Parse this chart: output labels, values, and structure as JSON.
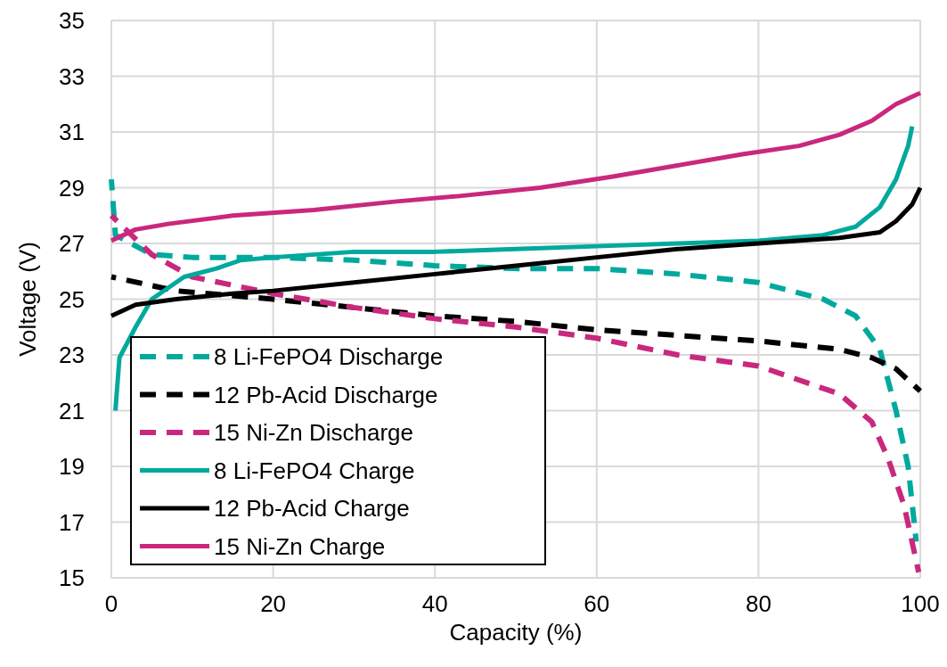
{
  "chart_data": {
    "type": "line",
    "xlabel": "Capacity (%)",
    "ylabel": "Voltage (V)",
    "xlim": [
      0,
      100
    ],
    "xticks": [
      0,
      20,
      40,
      60,
      80,
      100
    ],
    "ylim": [
      15,
      35
    ],
    "yticks": [
      15,
      17,
      19,
      21,
      23,
      25,
      27,
      29,
      31,
      33,
      35
    ],
    "grid": true,
    "legend": "bottom left",
    "series": [
      {
        "name": "8 Li-FePO4 Discharge",
        "color": "#00a99d",
        "line_style": "dashed",
        "x": [
          0,
          0.5,
          5,
          10,
          20,
          30,
          40,
          50,
          60,
          70,
          80,
          88,
          92,
          95,
          97,
          98.5,
          99.5
        ],
        "values": [
          29.3,
          27.3,
          26.6,
          26.5,
          26.5,
          26.4,
          26.2,
          26.1,
          26.1,
          25.9,
          25.6,
          25.0,
          24.4,
          23.2,
          21,
          19,
          16.3
        ]
      },
      {
        "name": "12 Pb-Acid Discharge",
        "color": "#000000",
        "line_style": "dashed",
        "x": [
          0,
          8,
          20,
          30,
          40,
          50,
          60,
          70,
          80,
          90,
          94,
          97,
          100
        ],
        "values": [
          25.8,
          25.3,
          25.0,
          24.7,
          24.4,
          24.2,
          23.9,
          23.7,
          23.5,
          23.2,
          22.9,
          22.5,
          21.7
        ]
      },
      {
        "name": "15 Ni-Zn Discharge",
        "color": "#c9287e",
        "line_style": "dashed",
        "x": [
          0,
          5,
          10,
          20,
          30,
          40,
          50,
          60,
          70,
          80,
          90,
          94,
          96,
          98,
          99.8
        ],
        "values": [
          28.0,
          26.6,
          25.8,
          25.2,
          24.7,
          24.3,
          24.0,
          23.6,
          23.0,
          22.6,
          21.6,
          20.6,
          19.3,
          17.6,
          15.2
        ]
      },
      {
        "name": "8 Li-FePO4 Charge",
        "color": "#00a99d",
        "line_style": "solid",
        "x": [
          0.5,
          1,
          3,
          5,
          9,
          13,
          16,
          20,
          30,
          40,
          50,
          60,
          70,
          80,
          88,
          92,
          95,
          97,
          98.5,
          99
        ],
        "values": [
          21.0,
          22.9,
          24.0,
          25.0,
          25.8,
          26.1,
          26.4,
          26.5,
          26.7,
          26.7,
          26.8,
          26.9,
          27.0,
          27.1,
          27.3,
          27.6,
          28.3,
          29.3,
          30.5,
          31.2
        ]
      },
      {
        "name": "12 Pb-Acid Charge",
        "color": "#000000",
        "line_style": "solid",
        "x": [
          0,
          3,
          8,
          15,
          20,
          30,
          40,
          50,
          60,
          70,
          80,
          90,
          95,
          97,
          99,
          100
        ],
        "values": [
          24.4,
          24.8,
          25.0,
          25.2,
          25.3,
          25.6,
          25.9,
          26.2,
          26.5,
          26.8,
          27.0,
          27.2,
          27.4,
          27.8,
          28.4,
          29.0
        ]
      },
      {
        "name": "15 Ni-Zn Charge",
        "color": "#c9287e",
        "line_style": "solid",
        "x": [
          0,
          3,
          7,
          15,
          25,
          35,
          43,
          53,
          62,
          70,
          78,
          85,
          90,
          94,
          97,
          100
        ],
        "values": [
          27.1,
          27.5,
          27.7,
          28.0,
          28.2,
          28.5,
          28.7,
          29.0,
          29.4,
          29.8,
          30.2,
          30.5,
          30.9,
          31.4,
          32.0,
          32.4
        ]
      }
    ]
  }
}
